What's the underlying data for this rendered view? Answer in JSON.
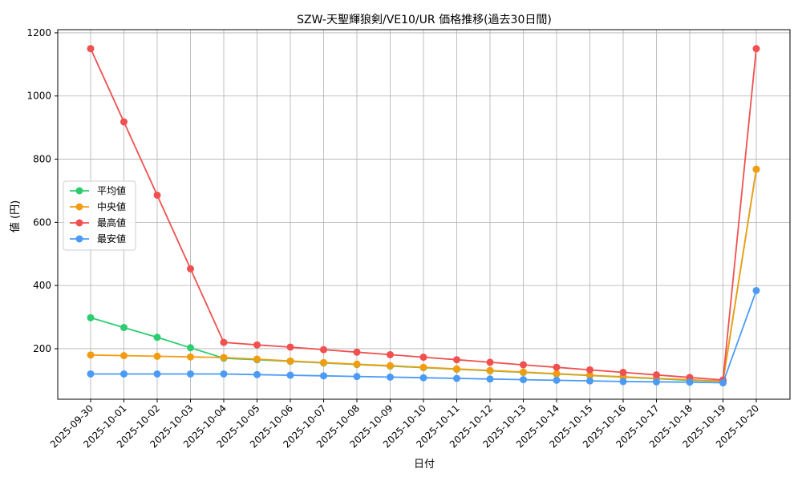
{
  "chart_data": {
    "type": "line",
    "title": "SZW-天聖輝狼剣/VE10/UR 価格推移(過去30日間)",
    "xlabel": "日付",
    "ylabel": "値 (円)",
    "x": [
      "2025-09-30",
      "2025-10-01",
      "2025-10-02",
      "2025-10-03",
      "2025-10-04",
      "2025-10-05",
      "2025-10-06",
      "2025-10-07",
      "2025-10-08",
      "2025-10-09",
      "2025-10-10",
      "2025-10-11",
      "2025-10-12",
      "2025-10-13",
      "2025-10-14",
      "2025-10-15",
      "2025-10-16",
      "2025-10-17",
      "2025-10-18",
      "2025-10-19",
      "2025-10-20"
    ],
    "ylim": [
      40,
      1210
    ],
    "yticks": [
      200,
      400,
      600,
      800,
      1000,
      1200
    ],
    "grid": true,
    "legend_position": "center-left",
    "series": [
      {
        "name": "平均値",
        "color": "#2ecc71",
        "values": [
          298,
          267,
          236,
          203,
          170,
          165,
          160,
          155,
          150,
          145,
          140,
          135,
          130,
          125,
          120,
          115,
          110,
          105,
          100,
          97,
          768
        ]
      },
      {
        "name": "中央値",
        "color": "#f39c12",
        "values": [
          180,
          178,
          176,
          174,
          172,
          167,
          161,
          156,
          151,
          146,
          141,
          136,
          131,
          126,
          121,
          116,
          111,
          106,
          102,
          97,
          768
        ]
      },
      {
        "name": "最高値",
        "color": "#f05050",
        "values": [
          1150,
          918,
          686,
          453,
          220,
          212,
          205,
          197,
          189,
          181,
          173,
          165,
          157,
          149,
          141,
          133,
          125,
          117,
          109,
          101,
          1150
        ]
      },
      {
        "name": "最安値",
        "color": "#4b9bf5",
        "values": [
          120,
          120,
          120,
          120,
          120,
          118,
          116,
          114,
          112,
          110,
          108,
          106,
          104,
          102,
          100,
          98,
          96,
          95,
          94,
          92,
          384
        ]
      }
    ]
  }
}
